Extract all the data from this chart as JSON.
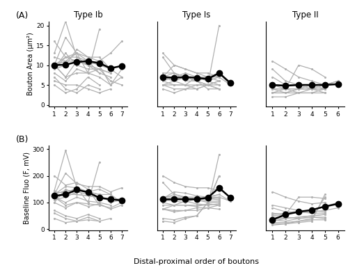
{
  "panel_A": {
    "type_Ib": {
      "x_max": 7,
      "yticks": [
        0,
        5,
        10,
        15,
        20
      ],
      "ylim": [
        -0.5,
        21
      ],
      "ylabel": "Bouton Area (μm²)",
      "mean_x": [
        1,
        2,
        3,
        4,
        5,
        6,
        7
      ],
      "mean_y": [
        10.0,
        10.1,
        10.8,
        11.0,
        10.5,
        9.2,
        9.8
      ],
      "individual_lines": [
        [
          10,
          17,
          13,
          12,
          12,
          9,
          10
        ],
        [
          10,
          12,
          11,
          11,
          10,
          9,
          7
        ],
        [
          9,
          10,
          14,
          12,
          11,
          13,
          16
        ],
        [
          9,
          12,
          12,
          11,
          10,
          5,
          7
        ],
        [
          8,
          6,
          9,
          8,
          9,
          6,
          5
        ],
        [
          10,
          7,
          8,
          8,
          7,
          5,
          9
        ],
        [
          10,
          7,
          11,
          10,
          8,
          7,
          null
        ],
        [
          10,
          11,
          11,
          10,
          9,
          8,
          null
        ],
        [
          9,
          13,
          10,
          9,
          9,
          8,
          null
        ],
        [
          6,
          5,
          5,
          4,
          3,
          4,
          null
        ],
        [
          13,
          21,
          12,
          10,
          11,
          9,
          null
        ],
        [
          16,
          12,
          13,
          11,
          8,
          null,
          null
        ],
        [
          5,
          3,
          4,
          7,
          5,
          null,
          null
        ],
        [
          7,
          4,
          3,
          5,
          4,
          null,
          null
        ],
        [
          12,
          11,
          13,
          8,
          19,
          null,
          null
        ]
      ]
    },
    "type_Is": {
      "x_max": 7,
      "yticks": [
        0,
        5,
        10,
        15,
        20
      ],
      "ylim": [
        -0.5,
        21
      ],
      "ylabel": "",
      "mean_x": [
        1,
        2,
        3,
        4,
        5,
        6,
        7
      ],
      "mean_y": [
        7.0,
        6.8,
        7.0,
        6.8,
        6.5,
        8.0,
        5.5
      ],
      "individual_lines": [
        [
          6,
          7,
          8,
          7,
          7,
          7,
          null
        ],
        [
          7,
          7,
          7,
          6,
          5,
          5,
          null
        ],
        [
          8,
          8,
          6,
          6,
          4,
          4,
          null
        ],
        [
          7,
          10,
          9,
          8,
          7,
          8,
          null
        ],
        [
          5,
          5,
          5,
          5,
          5,
          6,
          null
        ],
        [
          6,
          5,
          5,
          4,
          5,
          4,
          null
        ],
        [
          7,
          8,
          7,
          6,
          7,
          6,
          null
        ],
        [
          13,
          10,
          9,
          8,
          8,
          7,
          null
        ],
        [
          4,
          3,
          4,
          4,
          5,
          4,
          null
        ],
        [
          5,
          4,
          4,
          5,
          5,
          6,
          null
        ],
        [
          5,
          6,
          7,
          6,
          5,
          20,
          null
        ],
        [
          7,
          6,
          7,
          6,
          7,
          8,
          5
        ],
        [
          7,
          6,
          5,
          7,
          6,
          7,
          5
        ],
        [
          12,
          8,
          7,
          7,
          6,
          5,
          null
        ]
      ]
    },
    "type_II": {
      "x_max": 6,
      "yticks": [
        0,
        5,
        10,
        15,
        20
      ],
      "ylim": [
        -0.5,
        21
      ],
      "ylabel": "",
      "mean_x": [
        1,
        2,
        3,
        4,
        5,
        6
      ],
      "mean_y": [
        5.0,
        4.8,
        5.0,
        5.0,
        5.0,
        5.2
      ],
      "individual_lines": [
        [
          5,
          5,
          5,
          5,
          5,
          6
        ],
        [
          11,
          9,
          7,
          6,
          5,
          null
        ],
        [
          9,
          6,
          5,
          5,
          4,
          null
        ],
        [
          4,
          4,
          4,
          4,
          5,
          null
        ],
        [
          3,
          3,
          4,
          4,
          4,
          null
        ],
        [
          5,
          5,
          5,
          5,
          5,
          6
        ],
        [
          4,
          3,
          4,
          4,
          4,
          null
        ],
        [
          7,
          5,
          5,
          4,
          4,
          null
        ],
        [
          5,
          4,
          10,
          9,
          7,
          null
        ],
        [
          3,
          4,
          4,
          5,
          5,
          null
        ],
        [
          4,
          4,
          3,
          4,
          3,
          null
        ],
        [
          3,
          3,
          3,
          3,
          3,
          null
        ],
        [
          2,
          2,
          3,
          3,
          4,
          null
        ]
      ]
    }
  },
  "panel_B": {
    "type_Ib": {
      "x_max": 7,
      "yticks": [
        0,
        100,
        200,
        300
      ],
      "ylim": [
        -5,
        315
      ],
      "ylabel": "Baseline Fluo (F, mV)",
      "mean_x": [
        1,
        2,
        3,
        4,
        5,
        6,
        7
      ],
      "mean_y": [
        125,
        130,
        148,
        138,
        118,
        112,
        108
      ],
      "individual_lines": [
        [
          130,
          210,
          170,
          160,
          160,
          140,
          155
        ],
        [
          130,
          145,
          145,
          140,
          130,
          130,
          100
        ],
        [
          110,
          120,
          140,
          130,
          115,
          110,
          115
        ],
        [
          130,
          160,
          155,
          140,
          130,
          100,
          110
        ],
        [
          100,
          80,
          100,
          85,
          95,
          75,
          90
        ],
        [
          120,
          90,
          100,
          95,
          90,
          80,
          100
        ],
        [
          120,
          100,
          120,
          105,
          100,
          90,
          null
        ],
        [
          120,
          130,
          130,
          125,
          120,
          110,
          null
        ],
        [
          100,
          150,
          130,
          125,
          120,
          110,
          null
        ],
        [
          60,
          40,
          30,
          35,
          30,
          40,
          null
        ],
        [
          145,
          295,
          155,
          140,
          150,
          130,
          null
        ],
        [
          200,
          165,
          175,
          150,
          90,
          null,
          null
        ],
        [
          40,
          25,
          30,
          45,
          30,
          null,
          null
        ],
        [
          70,
          50,
          40,
          55,
          40,
          null,
          null
        ],
        [
          140,
          135,
          155,
          100,
          250,
          null,
          null
        ]
      ]
    },
    "type_Is": {
      "x_max": 7,
      "yticks": [
        0,
        100,
        200,
        300
      ],
      "ylim": [
        -5,
        315
      ],
      "ylabel": "",
      "mean_x": [
        1,
        2,
        3,
        4,
        5,
        6,
        7
      ],
      "mean_y": [
        112,
        112,
        112,
        112,
        118,
        155,
        118
      ],
      "individual_lines": [
        [
          100,
          120,
          120,
          115,
          120,
          120,
          null
        ],
        [
          110,
          115,
          115,
          110,
          105,
          105,
          null
        ],
        [
          120,
          120,
          110,
          110,
          100,
          100,
          null
        ],
        [
          115,
          140,
          135,
          125,
          120,
          130,
          null
        ],
        [
          90,
          90,
          90,
          90,
          90,
          95,
          null
        ],
        [
          100,
          90,
          90,
          85,
          95,
          90,
          null
        ],
        [
          115,
          130,
          120,
          110,
          120,
          115,
          null
        ],
        [
          200,
          175,
          160,
          155,
          155,
          145,
          null
        ],
        [
          75,
          65,
          70,
          70,
          80,
          75,
          null
        ],
        [
          75,
          70,
          70,
          80,
          80,
          90,
          null
        ],
        [
          75,
          90,
          105,
          95,
          90,
          280,
          null
        ],
        [
          115,
          110,
          115,
          110,
          120,
          130,
          105
        ],
        [
          110,
          105,
          100,
          115,
          110,
          120,
          105
        ],
        [
          175,
          130,
          120,
          120,
          115,
          110,
          null
        ],
        [
          40,
          35,
          45,
          50,
          100,
          200,
          null
        ],
        [
          30,
          25,
          40,
          50,
          100,
          200,
          null
        ]
      ]
    },
    "type_II": {
      "x_max": 6,
      "yticks": [
        0,
        100,
        200,
        300
      ],
      "ylim": [
        -5,
        315
      ],
      "ylabel": "",
      "mean_x": [
        1,
        2,
        3,
        4,
        5,
        6
      ],
      "mean_y": [
        35,
        55,
        65,
        72,
        85,
        95
      ],
      "individual_lines": [
        [
          50,
          55,
          65,
          70,
          85,
          100
        ],
        [
          90,
          80,
          70,
          70,
          65,
          null
        ],
        [
          40,
          40,
          45,
          50,
          55,
          null
        ],
        [
          25,
          25,
          30,
          35,
          35,
          null
        ],
        [
          55,
          60,
          65,
          65,
          70,
          80
        ],
        [
          35,
          30,
          40,
          45,
          45,
          null
        ],
        [
          80,
          65,
          65,
          60,
          60,
          null
        ],
        [
          140,
          120,
          105,
          95,
          100,
          null
        ],
        [
          60,
          55,
          120,
          120,
          115,
          null
        ],
        [
          30,
          40,
          45,
          50,
          55,
          null
        ],
        [
          45,
          45,
          40,
          45,
          40,
          null
        ],
        [
          15,
          20,
          25,
          30,
          130,
          null
        ],
        [
          20,
          20,
          30,
          40,
          120,
          null
        ]
      ]
    }
  },
  "xlabel": "Distal-proximal order of boutons",
  "col_titles": [
    "Type Ib",
    "Type Is",
    "Type II"
  ],
  "row_labels": [
    "(A)",
    "(B)"
  ],
  "gray_color": "#b0b0b0",
  "black_color": "#000000",
  "mean_markersize": 6,
  "individual_linewidth": 0.9,
  "mean_linewidth": 1.8
}
